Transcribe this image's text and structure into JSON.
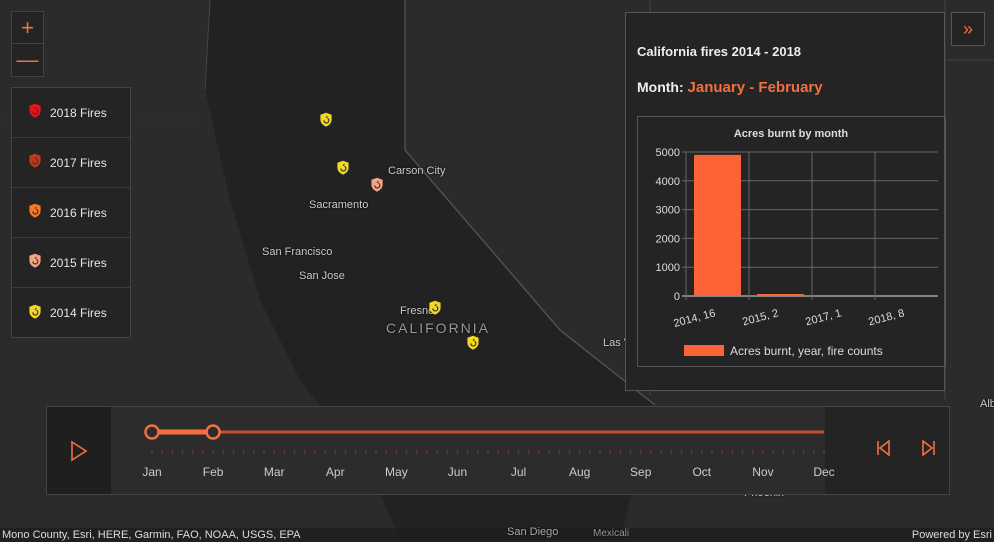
{
  "map": {
    "labels": {
      "carson": "Carson City",
      "sacramento": "Sacramento",
      "sf": "San Francisco",
      "sj": "San Jose",
      "fresno": "Fresno",
      "ca": "CALIFORNIA",
      "lasvegas": "Las V",
      "alb": "Alb",
      "phoenix": "Phoenix",
      "sandiego": "San Diego",
      "mexicali": "Mexicali"
    }
  },
  "zoom": {
    "in": "+",
    "out": "—"
  },
  "legend": {
    "items": [
      {
        "label": "2018 Fires",
        "color": "#e8141c"
      },
      {
        "label": "2017 Fires",
        "color": "#c0391b"
      },
      {
        "label": "2016 Fires",
        "color": "#f47a25"
      },
      {
        "label": "2015 Fires",
        "color": "#f5a487"
      },
      {
        "label": "2014 Fires",
        "color": "#f3d824"
      }
    ]
  },
  "popup": {
    "title": "California fires 2014 - 2018",
    "month_label": "Month:",
    "month_value": "January - February"
  },
  "chart_data": {
    "type": "bar",
    "title": "Acres burnt by month",
    "categories": [
      "2014, 16",
      "2015, 2",
      "2017, 1",
      "2018, 8"
    ],
    "values": [
      4900,
      70,
      0,
      0
    ],
    "ylim": [
      0,
      5000
    ],
    "yticks": [
      "0",
      "1000",
      "2000",
      "3000",
      "4000",
      "5000"
    ],
    "legend": "Acres burnt, year, fire counts",
    "color": "#fb6236"
  },
  "slider": {
    "months": [
      "Jan",
      "Feb",
      "Mar",
      "Apr",
      "May",
      "Jun",
      "Jul",
      "Aug",
      "Sep",
      "Oct",
      "Nov",
      "Dec"
    ],
    "start": 0,
    "end": 1
  },
  "attribution": {
    "left": "Mono County, Esri, HERE, Garmin, FAO, NOAA, USGS, EPA",
    "right": "Powered by Esri"
  }
}
